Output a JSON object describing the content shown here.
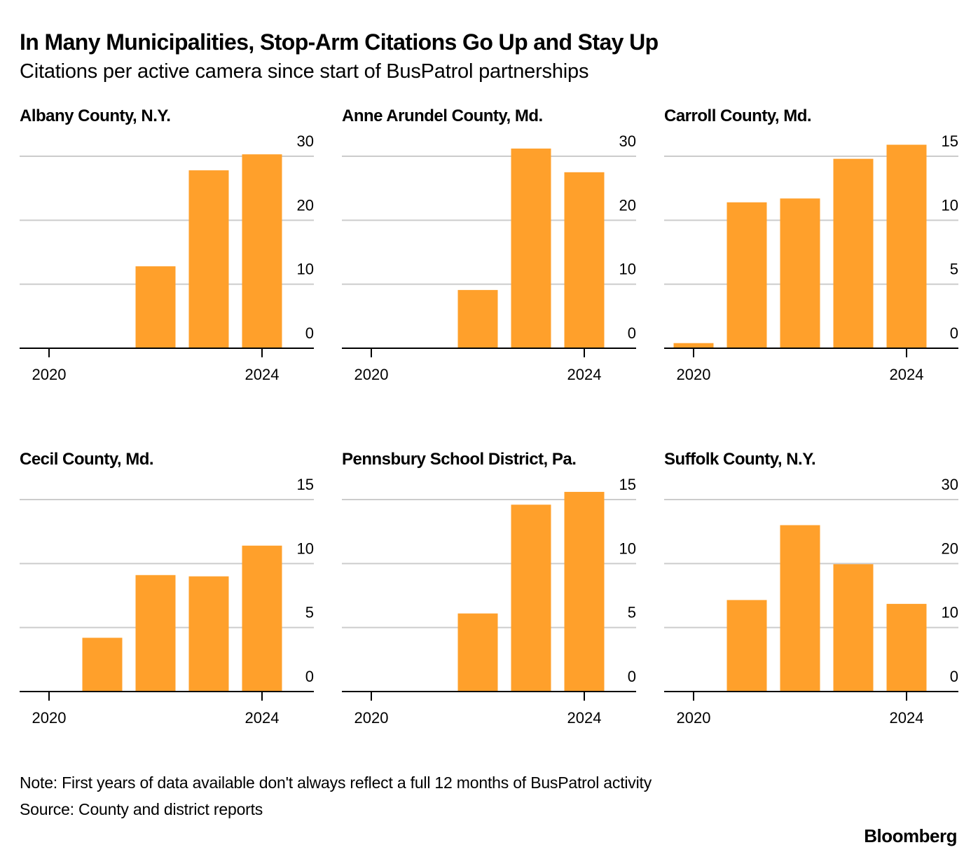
{
  "header": {
    "title": "In Many Municipalities, Stop-Arm Citations Go Up and Stay Up",
    "subtitle": "Citations per active camera since start of BusPatrol partnerships"
  },
  "footer": {
    "note": "Note: First years of data available don't always reflect a full 12 months of BusPatrol activity",
    "source": "Source: County and district reports",
    "brand": "Bloomberg"
  },
  "colors": {
    "bar": "#FFA02B",
    "grid": "#CCCCCC",
    "axis": "#000000"
  },
  "chart_data": [
    {
      "type": "bar",
      "title": "Albany County, N.Y.",
      "categories": [
        "2020",
        "2021",
        "2022",
        "2023",
        "2024"
      ],
      "values": [
        null,
        null,
        12.8,
        27.8,
        30.3
      ],
      "xticks": [
        "2020",
        "2024"
      ],
      "yticks": [
        0,
        10,
        20,
        30
      ],
      "ylim": [
        0,
        30
      ],
      "xlabel": "",
      "ylabel": "",
      "grid": true,
      "y_axis_side": "right"
    },
    {
      "type": "bar",
      "title": "Anne Arundel County, Md.",
      "categories": [
        "2020",
        "2021",
        "2022",
        "2023",
        "2024"
      ],
      "values": [
        null,
        null,
        9.1,
        31.2,
        27.5
      ],
      "xticks": [
        "2020",
        "2024"
      ],
      "yticks": [
        0,
        10,
        20,
        30
      ],
      "ylim": [
        0,
        30
      ],
      "xlabel": "",
      "ylabel": "",
      "grid": true,
      "y_axis_side": "right"
    },
    {
      "type": "bar",
      "title": "Carroll County, Md.",
      "categories": [
        "2020",
        "2021",
        "2022",
        "2023",
        "2024"
      ],
      "values": [
        0.4,
        11.4,
        11.7,
        14.8,
        15.9
      ],
      "xticks": [
        "2020",
        "2024"
      ],
      "yticks": [
        0,
        5,
        10,
        15
      ],
      "ylim": [
        0,
        15
      ],
      "xlabel": "",
      "ylabel": "",
      "grid": true,
      "y_axis_side": "right"
    },
    {
      "type": "bar",
      "title": "Cecil County, Md.",
      "categories": [
        "2020",
        "2021",
        "2022",
        "2023",
        "2024"
      ],
      "values": [
        null,
        4.2,
        9.1,
        9.0,
        11.4
      ],
      "xticks": [
        "2020",
        "2024"
      ],
      "yticks": [
        0,
        5,
        10,
        15
      ],
      "ylim": [
        0,
        15
      ],
      "xlabel": "",
      "ylabel": "",
      "grid": true,
      "y_axis_side": "right"
    },
    {
      "type": "bar",
      "title": "Pennsbury School District, Pa.",
      "categories": [
        "2020",
        "2021",
        "2022",
        "2023",
        "2024"
      ],
      "values": [
        null,
        null,
        6.1,
        14.6,
        15.6
      ],
      "xticks": [
        "2020",
        "2024"
      ],
      "yticks": [
        0,
        5,
        10,
        15
      ],
      "ylim": [
        0,
        15
      ],
      "xlabel": "",
      "ylabel": "",
      "grid": true,
      "y_axis_side": "right"
    },
    {
      "type": "bar",
      "title": "Suffolk County, N.Y.",
      "categories": [
        "2020",
        "2021",
        "2022",
        "2023",
        "2024"
      ],
      "values": [
        null,
        14.3,
        26.0,
        19.9,
        13.7
      ],
      "xticks": [
        "2020",
        "2024"
      ],
      "yticks": [
        0,
        10,
        20,
        30
      ],
      "ylim": [
        0,
        30
      ],
      "xlabel": "",
      "ylabel": "",
      "grid": true,
      "y_axis_side": "right"
    }
  ]
}
